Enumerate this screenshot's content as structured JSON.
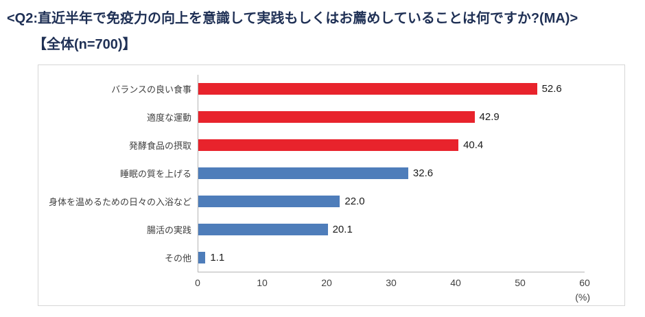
{
  "header": {
    "title": "<Q2:直近半年で免疫力の向上を意識して実践もしくはお薦めしていることは何ですか?(MA)>",
    "subtitle": "【全体(n=700)】"
  },
  "chart_data": {
    "type": "bar",
    "orientation": "horizontal",
    "categories": [
      "バランスの良い食事",
      "適度な運動",
      "発酵食品の摂取",
      "睡眠の質を上げる",
      "身体を温めるための日々の入浴など",
      "腸活の実践",
      "その他"
    ],
    "values": [
      52.6,
      42.9,
      40.4,
      32.6,
      22.0,
      20.1,
      1.1
    ],
    "value_labels": [
      "52.6",
      "42.9",
      "40.4",
      "32.6",
      "22.0",
      "20.1",
      "1.1"
    ],
    "bar_colors": [
      "#e8232c",
      "#e8232c",
      "#e8232c",
      "#4e7dba",
      "#4e7dba",
      "#4e7dba",
      "#4e7dba"
    ],
    "xlim": [
      0,
      60
    ],
    "xticks": [
      0,
      10,
      20,
      30,
      40,
      50,
      60
    ],
    "xlabel": "(%)",
    "grid": false,
    "legend": "none"
  },
  "colors": {
    "red": "#e8232c",
    "blue": "#4e7dba",
    "axis_line": "#b4b4b4",
    "chart_border": "#d6d6d6",
    "title_text": "#1f3055"
  }
}
